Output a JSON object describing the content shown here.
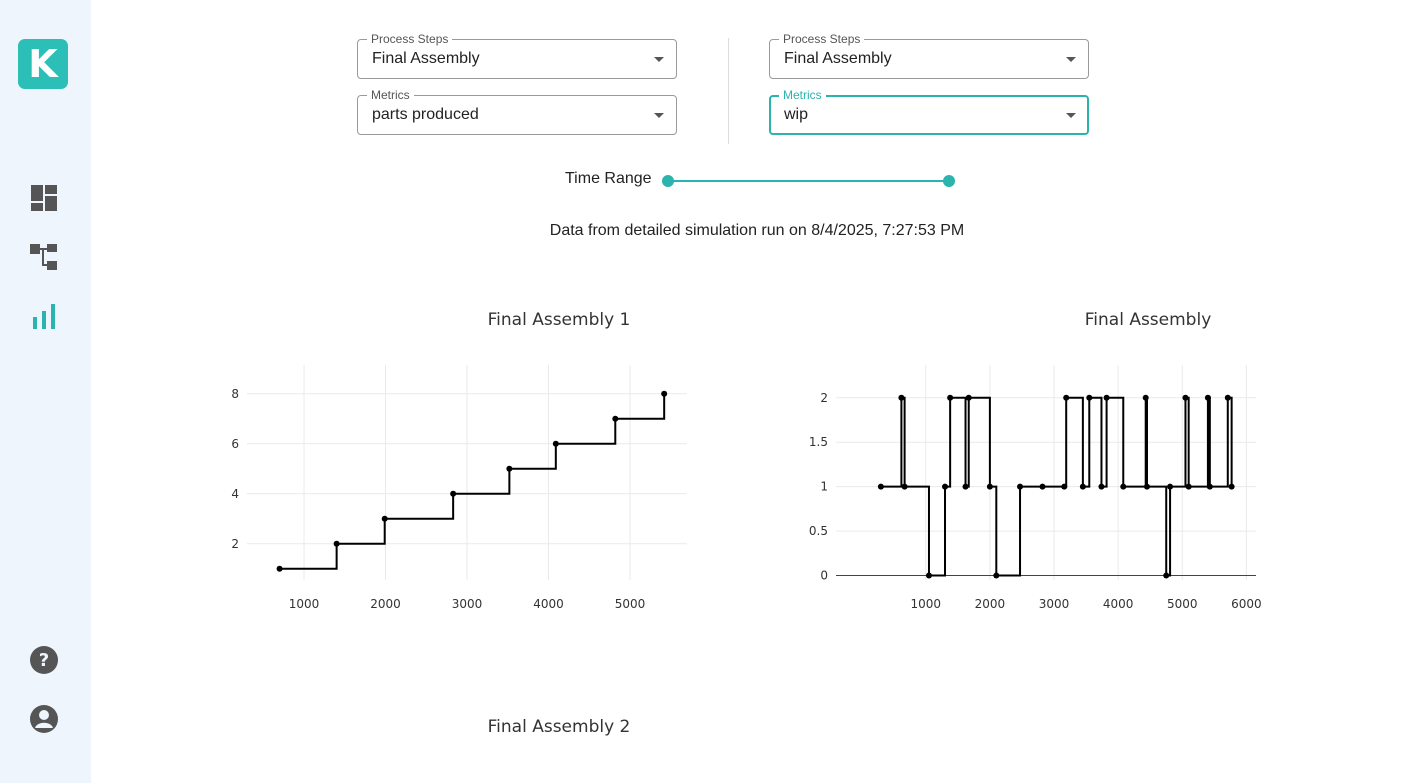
{
  "sidebar": {
    "logo_letter": "K",
    "items": [
      {
        "icon": "dashboard-icon"
      },
      {
        "icon": "process-tree-icon"
      },
      {
        "icon": "bar-chart-icon",
        "active": true
      }
    ],
    "bottom_items": [
      {
        "icon": "help-icon"
      },
      {
        "icon": "account-icon"
      }
    ]
  },
  "left_controls": {
    "process_label": "Process Steps",
    "process_value": "Final Assembly",
    "metrics_label": "Metrics",
    "metrics_value": "parts produced"
  },
  "right_controls": {
    "process_label": "Process Steps",
    "process_value": "Final Assembly",
    "metrics_label": "Metrics",
    "metrics_value": "wip"
  },
  "time_range": {
    "label": "Time Range",
    "value": [
      0.0,
      1.0
    ]
  },
  "data_note": "Data from detailed simulation run on 8/4/2025, 7:27:53 PM",
  "colors": {
    "accent": "#2bb3ad",
    "sidebar_bg": "#eef5fd",
    "line": "#000000"
  },
  "chart_data": [
    {
      "type": "line",
      "shape": "step",
      "title": "Final Assembly 1",
      "xlim": [
        300,
        5700
      ],
      "ylim": [
        0.55,
        8.55
      ],
      "xticks": [
        1000,
        2000,
        3000,
        4000,
        5000
      ],
      "yticks": [
        2,
        4,
        6,
        8
      ],
      "grid": true,
      "series": [
        {
          "x": [
            700,
            1400,
            1990,
            2830,
            3520,
            4090,
            4820,
            5420
          ],
          "y": [
            1,
            2,
            3,
            4,
            5,
            6,
            7,
            8
          ]
        }
      ]
    },
    {
      "type": "line",
      "shape": "step",
      "title": "Final Assembly",
      "xlim": [
        -400,
        6150
      ],
      "ylim": [
        -0.05,
        2.2
      ],
      "xticks": [
        1000,
        2000,
        3000,
        4000,
        5000,
        6000
      ],
      "yticks": [
        0,
        0.5,
        1,
        1.5,
        2
      ],
      "grid": true,
      "series": [
        {
          "x": [
            300,
            620,
            670,
            1050,
            1300,
            1380,
            1620,
            1670,
            2000,
            2100,
            2470,
            2820,
            3160,
            3190,
            3450,
            3550,
            3740,
            3820,
            4080,
            4430,
            4450,
            4750,
            4810,
            5050,
            5100,
            5400,
            5430,
            5710,
            5770
          ],
          "y": [
            1,
            2,
            1,
            0,
            1,
            2,
            1,
            2,
            1,
            0,
            1,
            1,
            1,
            2,
            1,
            2,
            1,
            2,
            1,
            2,
            1,
            0,
            1,
            2,
            1,
            2,
            1,
            2,
            1
          ]
        }
      ]
    },
    {
      "type": "line",
      "title": "Final Assembly 2"
    }
  ]
}
